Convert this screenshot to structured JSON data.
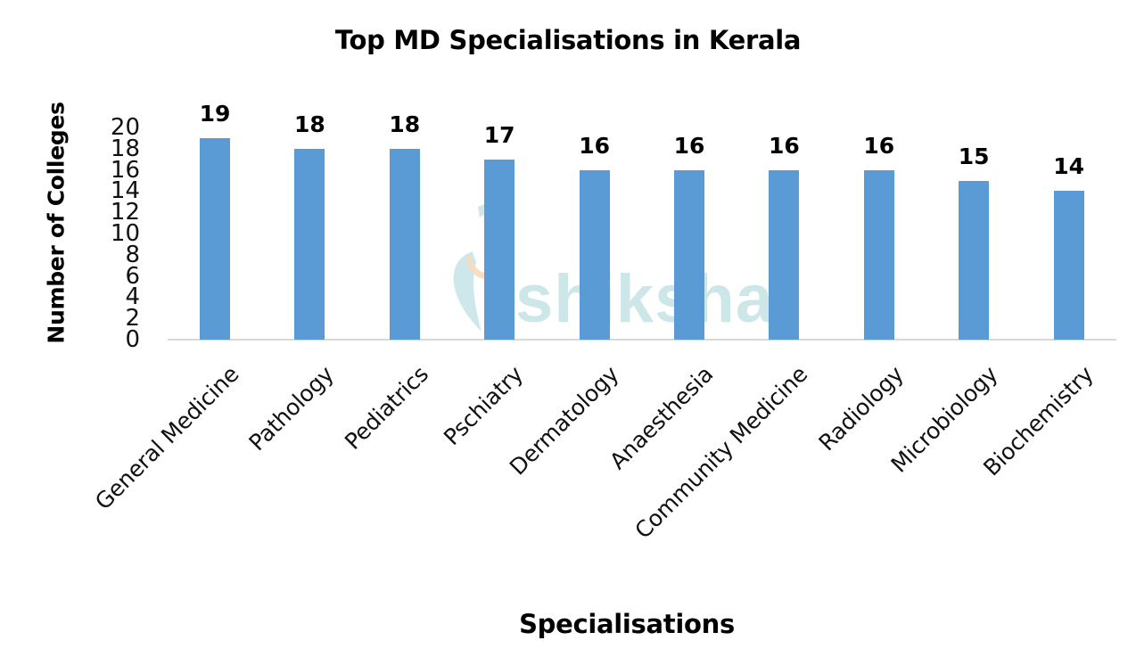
{
  "chart_data": {
    "type": "bar",
    "title": "Top MD Specialisations in Kerala",
    "xlabel": "Specialisations",
    "ylabel": "Number of Colleges",
    "categories": [
      "General Medicine",
      "Pathology",
      "Pediatrics",
      "Pschiatry",
      "Dermatology",
      "Anaesthesia",
      "Community Medicine",
      "Radiology",
      "Microbiology",
      "Biochemistry"
    ],
    "values": [
      19,
      18,
      18,
      17,
      16,
      16,
      16,
      16,
      15,
      14
    ],
    "ylim": [
      0,
      20
    ],
    "yticks": [
      "0",
      "2",
      "4",
      "6",
      "8",
      "10",
      "12",
      "14",
      "16",
      "18",
      "20"
    ],
    "data_labels": true,
    "grid": false,
    "legend": null,
    "bar_color": "#5b9bd5",
    "axis_color": "#d9d9d9"
  },
  "watermark": {
    "text": "shiksha",
    "color": "#c5e3e6"
  }
}
